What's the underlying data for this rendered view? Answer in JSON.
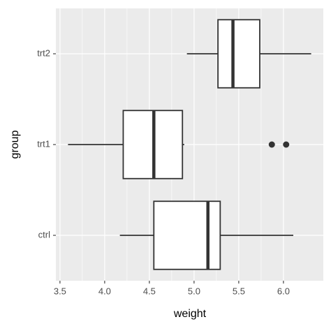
{
  "chart_data": {
    "type": "boxplot",
    "orientation": "horizontal",
    "xlabel": "weight",
    "ylabel": "group",
    "categories": [
      "ctrl",
      "trt1",
      "trt2"
    ],
    "boxes": [
      {
        "min": 4.17,
        "q1": 4.55,
        "median": 5.155,
        "q3": 5.2925,
        "max": 6.11,
        "outliers": []
      },
      {
        "min": 3.59,
        "q1": 4.2075,
        "median": 4.55,
        "q3": 4.87,
        "max": 4.89,
        "outliers": [
          5.87,
          6.03
        ]
      },
      {
        "min": 4.92,
        "q1": 5.2675,
        "median": 5.435,
        "q3": 5.735,
        "max": 6.31,
        "outliers": []
      }
    ],
    "xlim": [
      3.454,
      6.446
    ],
    "xticks": [
      3.5,
      {
        "value": 4,
        "label": "4.0"
      },
      4.5,
      {
        "value": 5,
        "label": "5.0"
      },
      5.5,
      {
        "value": 6,
        "label": "6.0"
      }
    ],
    "grid": true,
    "panel_color": "#ebebeb",
    "box_fill": "#ffffff",
    "line_color": "#333333"
  }
}
